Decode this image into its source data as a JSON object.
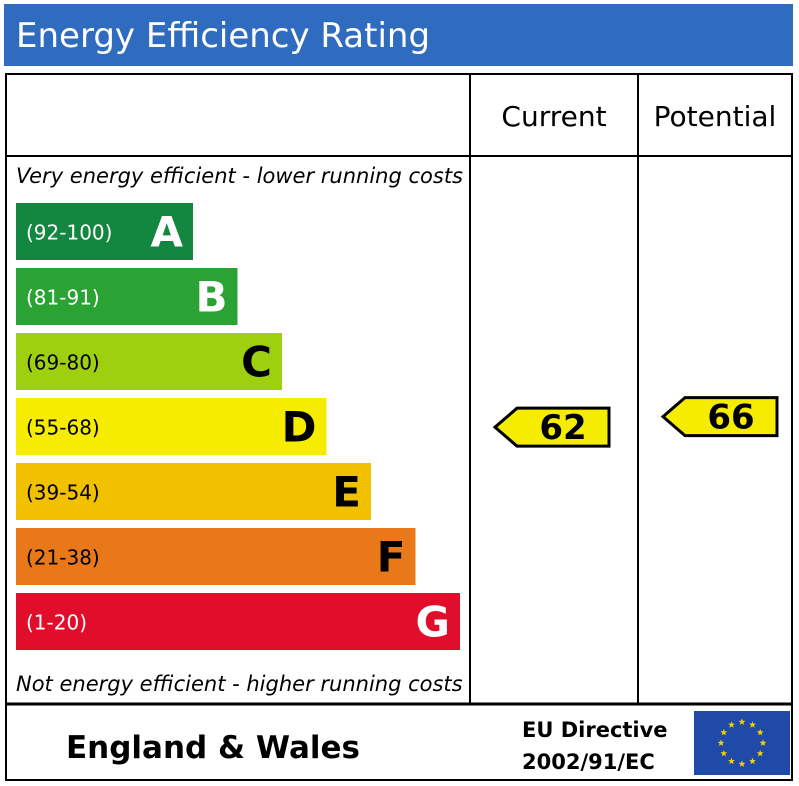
{
  "header": {
    "title": "Energy Efficiency Rating"
  },
  "columns": {
    "current": "Current",
    "potential": "Potential"
  },
  "captions": {
    "top": "Very energy efficient - lower running costs",
    "bottom": "Not energy efficient - higher running costs"
  },
  "footer": {
    "region": "England & Wales",
    "directive_line1": "EU Directive",
    "directive_line2": "2002/91/EC"
  },
  "chart_data": {
    "type": "bar",
    "title": "Energy Efficiency Rating",
    "bands": [
      {
        "letter": "A",
        "range": "(92-100)",
        "min": 92,
        "max": 100,
        "color": "#138640"
      },
      {
        "letter": "B",
        "range": "(81-91)",
        "min": 81,
        "max": 91,
        "color": "#2aa234"
      },
      {
        "letter": "C",
        "range": "(69-80)",
        "min": 69,
        "max": 80,
        "color": "#9fd00f"
      },
      {
        "letter": "D",
        "range": "(55-68)",
        "min": 55,
        "max": 68,
        "color": "#f5ec00"
      },
      {
        "letter": "E",
        "range": "(39-54)",
        "min": 39,
        "max": 54,
        "color": "#f1c100"
      },
      {
        "letter": "F",
        "range": "(21-38)",
        "min": 21,
        "max": 38,
        "color": "#e8781a"
      },
      {
        "letter": "G",
        "range": "(1-20)",
        "min": 1,
        "max": 20,
        "color": "#e10e2b"
      }
    ],
    "ratings": {
      "current": 62,
      "potential": 66
    },
    "indicator_color": "#f5ec00"
  }
}
